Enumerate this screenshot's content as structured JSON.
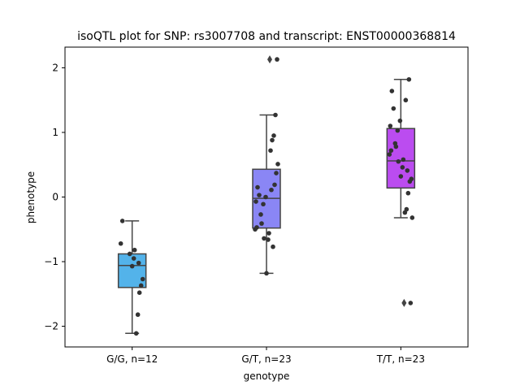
{
  "chart_data": {
    "type": "box",
    "title": "isoQTL plot for SNP: rs3007708 and transcript: ENST00000368814",
    "xlabel": "genotype",
    "ylabel": "phenotype",
    "ylim": [
      -2.32,
      2.32
    ],
    "yticks": [
      -2,
      -1,
      0,
      1,
      2
    ],
    "yticklabels": [
      "−2",
      "−1",
      "0",
      "1",
      "2"
    ],
    "grid": false,
    "legend": "none",
    "categories": [
      "G/G, n=12",
      "G/T, n=23",
      "T/T, n=23"
    ],
    "boxes": [
      {
        "category": "G/G, n=12",
        "color": "#53b3ea",
        "q1": -1.4,
        "median": -1.06,
        "q3": -0.88,
        "whisker_low": -2.11,
        "whisker_high": -0.37,
        "outliers": []
      },
      {
        "category": "G/T, n=23",
        "color": "#8a86f5",
        "q1": -0.48,
        "median": -0.02,
        "q3": 0.43,
        "whisker_low": -1.18,
        "whisker_high": 1.27,
        "outliers": [
          2.13
        ]
      },
      {
        "category": "T/T, n=23",
        "color": "#bb4cf0",
        "q1": 0.14,
        "median": 0.56,
        "q3": 1.06,
        "whisker_low": -0.32,
        "whisker_high": 1.82,
        "outliers": [
          -1.64
        ]
      }
    ],
    "points": [
      {
        "category": "G/G, n=12",
        "values": [
          -0.37,
          -0.72,
          -0.82,
          -0.88,
          -0.95,
          -1.02,
          -1.07,
          -1.27,
          -1.37,
          -1.48,
          -1.82,
          -2.11
        ]
      },
      {
        "category": "G/T, n=23",
        "values": [
          2.13,
          1.27,
          0.95,
          0.88,
          0.72,
          0.51,
          0.37,
          0.19,
          0.15,
          0.11,
          0.03,
          0.0,
          -0.07,
          -0.11,
          -0.27,
          -0.41,
          -0.47,
          -0.5,
          -0.56,
          -0.64,
          -0.66,
          -0.77,
          -1.18
        ]
      },
      {
        "category": "T/T, n=23",
        "values": [
          1.82,
          1.64,
          1.5,
          1.37,
          1.18,
          1.1,
          1.03,
          0.83,
          0.78,
          0.72,
          0.66,
          0.58,
          0.55,
          0.46,
          0.41,
          0.32,
          0.28,
          0.24,
          0.06,
          -0.19,
          -0.24,
          -0.32,
          -1.64
        ]
      }
    ]
  }
}
